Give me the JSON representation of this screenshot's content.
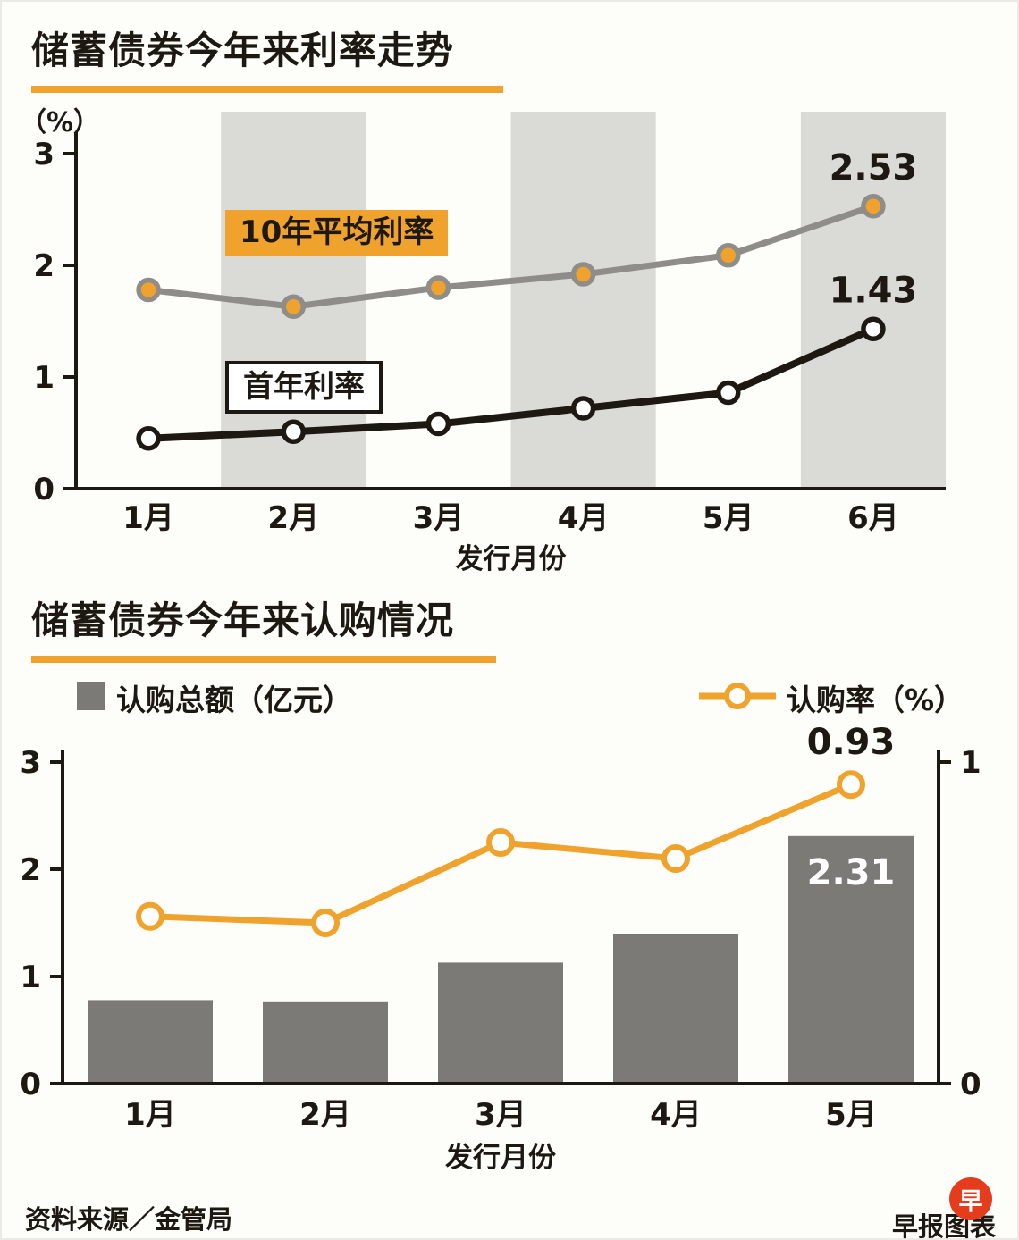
{
  "palette": {
    "ink": "#1d1812",
    "accent": "#efa32c",
    "gray_line": "#8e8d8a",
    "band": "#dadad7",
    "bar": "#7b7a76",
    "logo_red": "#e63c1e",
    "white": "#ffffff",
    "background": "#fdfdfa"
  },
  "chart_data": [
    {
      "type": "line",
      "title": "储蓄债券今年来利率走势",
      "unit_label": "（%）",
      "xlabel": "发行月份",
      "categories": [
        "1月",
        "2月",
        "3月",
        "4月",
        "5月",
        "6月"
      ],
      "ylim": [
        0,
        3
      ],
      "yticks": [
        "0",
        "1",
        "2",
        "3"
      ],
      "shaded_slots": [
        1,
        3,
        5
      ],
      "grid": false,
      "legend_position": "on-chart",
      "series": [
        {
          "name": "10年平均利率",
          "values": [
            1.78,
            1.63,
            1.8,
            1.92,
            2.09,
            2.53
          ],
          "line_color": "#8e8d8a",
          "marker_fill": "#efa32c",
          "end_label": "2.53"
        },
        {
          "name": "首年利率",
          "values": [
            0.45,
            0.51,
            0.58,
            0.72,
            0.86,
            1.43
          ],
          "line_color": "#1d1812",
          "marker_fill": "#ffffff",
          "end_label": "1.43"
        }
      ]
    },
    {
      "type": "bar+line",
      "title": "储蓄债券今年来认购情况",
      "xlabel": "发行月份",
      "categories": [
        "1月",
        "2月",
        "3月",
        "4月",
        "5月"
      ],
      "left_axis": {
        "ylim": [
          0,
          3
        ],
        "ticks": [
          "0",
          "1",
          "2",
          "3"
        ]
      },
      "right_axis": {
        "ylim": [
          0,
          1
        ],
        "ticks": [
          "0",
          "1"
        ]
      },
      "bars": {
        "name": "认购总额（亿元）",
        "values": [
          0.78,
          0.76,
          1.13,
          1.4,
          2.31
        ],
        "color": "#7b7a76",
        "end_label": "2.31"
      },
      "line": {
        "name": "认购率（%）",
        "values": [
          0.52,
          0.5,
          0.75,
          0.7,
          0.93
        ],
        "color": "#efa32c",
        "end_label": "0.93"
      }
    }
  ],
  "footer": {
    "source": "资料来源／金管局",
    "credit": "早报图表",
    "logo_text": "早"
  }
}
